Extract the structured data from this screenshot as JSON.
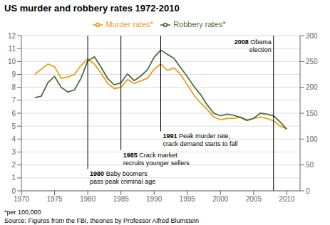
{
  "chart_data": {
    "type": "line",
    "title": "US murder and robbery rates 1972-2010",
    "x": [
      1972,
      1973,
      1974,
      1975,
      1976,
      1977,
      1978,
      1979,
      1980,
      1981,
      1982,
      1983,
      1984,
      1985,
      1986,
      1987,
      1988,
      1989,
      1990,
      1991,
      1992,
      1993,
      1994,
      1995,
      1996,
      1997,
      1998,
      1999,
      2000,
      2001,
      2002,
      2003,
      2004,
      2005,
      2006,
      2007,
      2008,
      2009,
      2010
    ],
    "xlim": [
      1970,
      2012
    ],
    "xticks": [
      1970,
      1975,
      1980,
      1985,
      1990,
      1995,
      2000,
      2005,
      2010
    ],
    "ylim": [
      0,
      12
    ],
    "yticks": [
      0,
      1,
      2,
      3,
      4,
      5,
      6,
      7,
      8,
      9,
      10,
      11,
      12
    ],
    "y2lim": [
      0,
      300
    ],
    "y2ticks": [
      0,
      50,
      100,
      150,
      200,
      250,
      300
    ],
    "grid": true,
    "legend": "top",
    "series": [
      {
        "name": "Murder rates*",
        "color": "#E8A020",
        "values": [
          9.0,
          9.4,
          9.8,
          9.6,
          8.7,
          8.8,
          9.0,
          9.7,
          10.2,
          9.8,
          9.1,
          8.3,
          7.9,
          8.0,
          8.6,
          8.3,
          8.5,
          8.7,
          9.4,
          9.8,
          9.3,
          9.5,
          9.0,
          8.2,
          7.4,
          6.8,
          6.3,
          5.7,
          5.5,
          5.6,
          5.6,
          5.7,
          5.5,
          5.6,
          5.7,
          5.6,
          5.4,
          5.0,
          4.8
        ]
      },
      {
        "name": "Robbery rates*",
        "color": "#4A7040",
        "axis": "y2",
        "values": [
          180,
          183,
          209,
          221,
          200,
          191,
          195,
          218,
          251,
          259,
          239,
          217,
          205,
          209,
          226,
          213,
          222,
          234,
          258,
          272,
          264,
          256,
          238,
          221,
          202,
          186,
          166,
          150,
          145,
          148,
          146,
          142,
          136,
          140,
          150,
          148,
          145,
          133,
          119
        ]
      }
    ],
    "annotations": [
      {
        "x": 1980,
        "text": [
          "1980 Baby boomers",
          "pass peak criminal age"
        ]
      },
      {
        "x": 1985,
        "text": [
          "1985 Crack market",
          "recruits younger sellers"
        ]
      },
      {
        "x": 1991,
        "text": [
          "1991 Peak murder rate,",
          "crack demand starts to fall"
        ]
      },
      {
        "x": 2008,
        "text": [
          "2008 Obama",
          "election"
        ]
      }
    ],
    "footnotes": [
      "*per 100,000",
      "Source: Figures from the FBI, theories by Professor Alfred Blumstein"
    ]
  }
}
